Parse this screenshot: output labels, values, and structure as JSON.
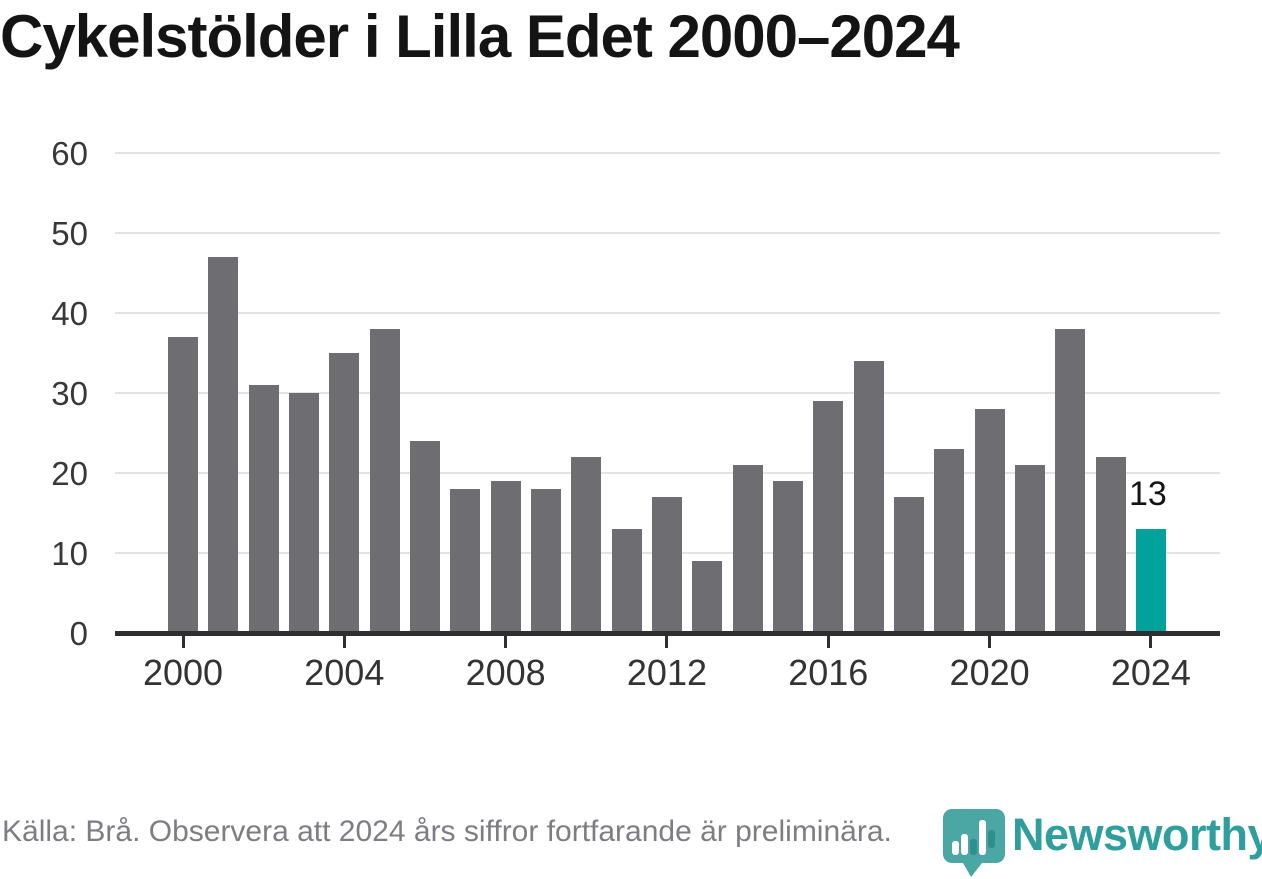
{
  "title": "Cykelstölder i Lilla Edet 2000–2024",
  "chart_data": {
    "type": "bar",
    "categories": [
      2000,
      2001,
      2002,
      2003,
      2004,
      2005,
      2006,
      2007,
      2008,
      2009,
      2010,
      2011,
      2012,
      2013,
      2014,
      2015,
      2016,
      2017,
      2018,
      2019,
      2020,
      2021,
      2022,
      2023,
      2024
    ],
    "values": [
      37,
      47,
      31,
      30,
      35,
      38,
      24,
      18,
      19,
      18,
      22,
      13,
      17,
      9,
      21,
      19,
      29,
      34,
      17,
      23,
      28,
      21,
      38,
      22,
      13
    ],
    "title": "Cykelstölder i Lilla Edet 2000–2024",
    "xlabel": "",
    "ylabel": "",
    "ylim": [
      0,
      60
    ],
    "yticks": [
      0,
      10,
      20,
      30,
      40,
      50,
      60
    ],
    "xticks": [
      2000,
      2004,
      2008,
      2012,
      2016,
      2020,
      2024
    ],
    "grid": true,
    "legend": "none",
    "highlight_category": 2024,
    "highlight_value_label": "13",
    "colors": {
      "bar": "#6e6d71",
      "highlight_bar": "#00a29b",
      "gridline": "#e3e3e3",
      "axis": "#2f2f2f"
    }
  },
  "footer": {
    "source_note": "Källa: Brå. Observera att 2024 års siffror fortfarande är preliminära.",
    "brand": "Newsworthy",
    "brand_color": "#2f9f9d",
    "pin_color": "#4aa7a3",
    "pin_bars_icon": "bar-chart-pin-icon"
  }
}
